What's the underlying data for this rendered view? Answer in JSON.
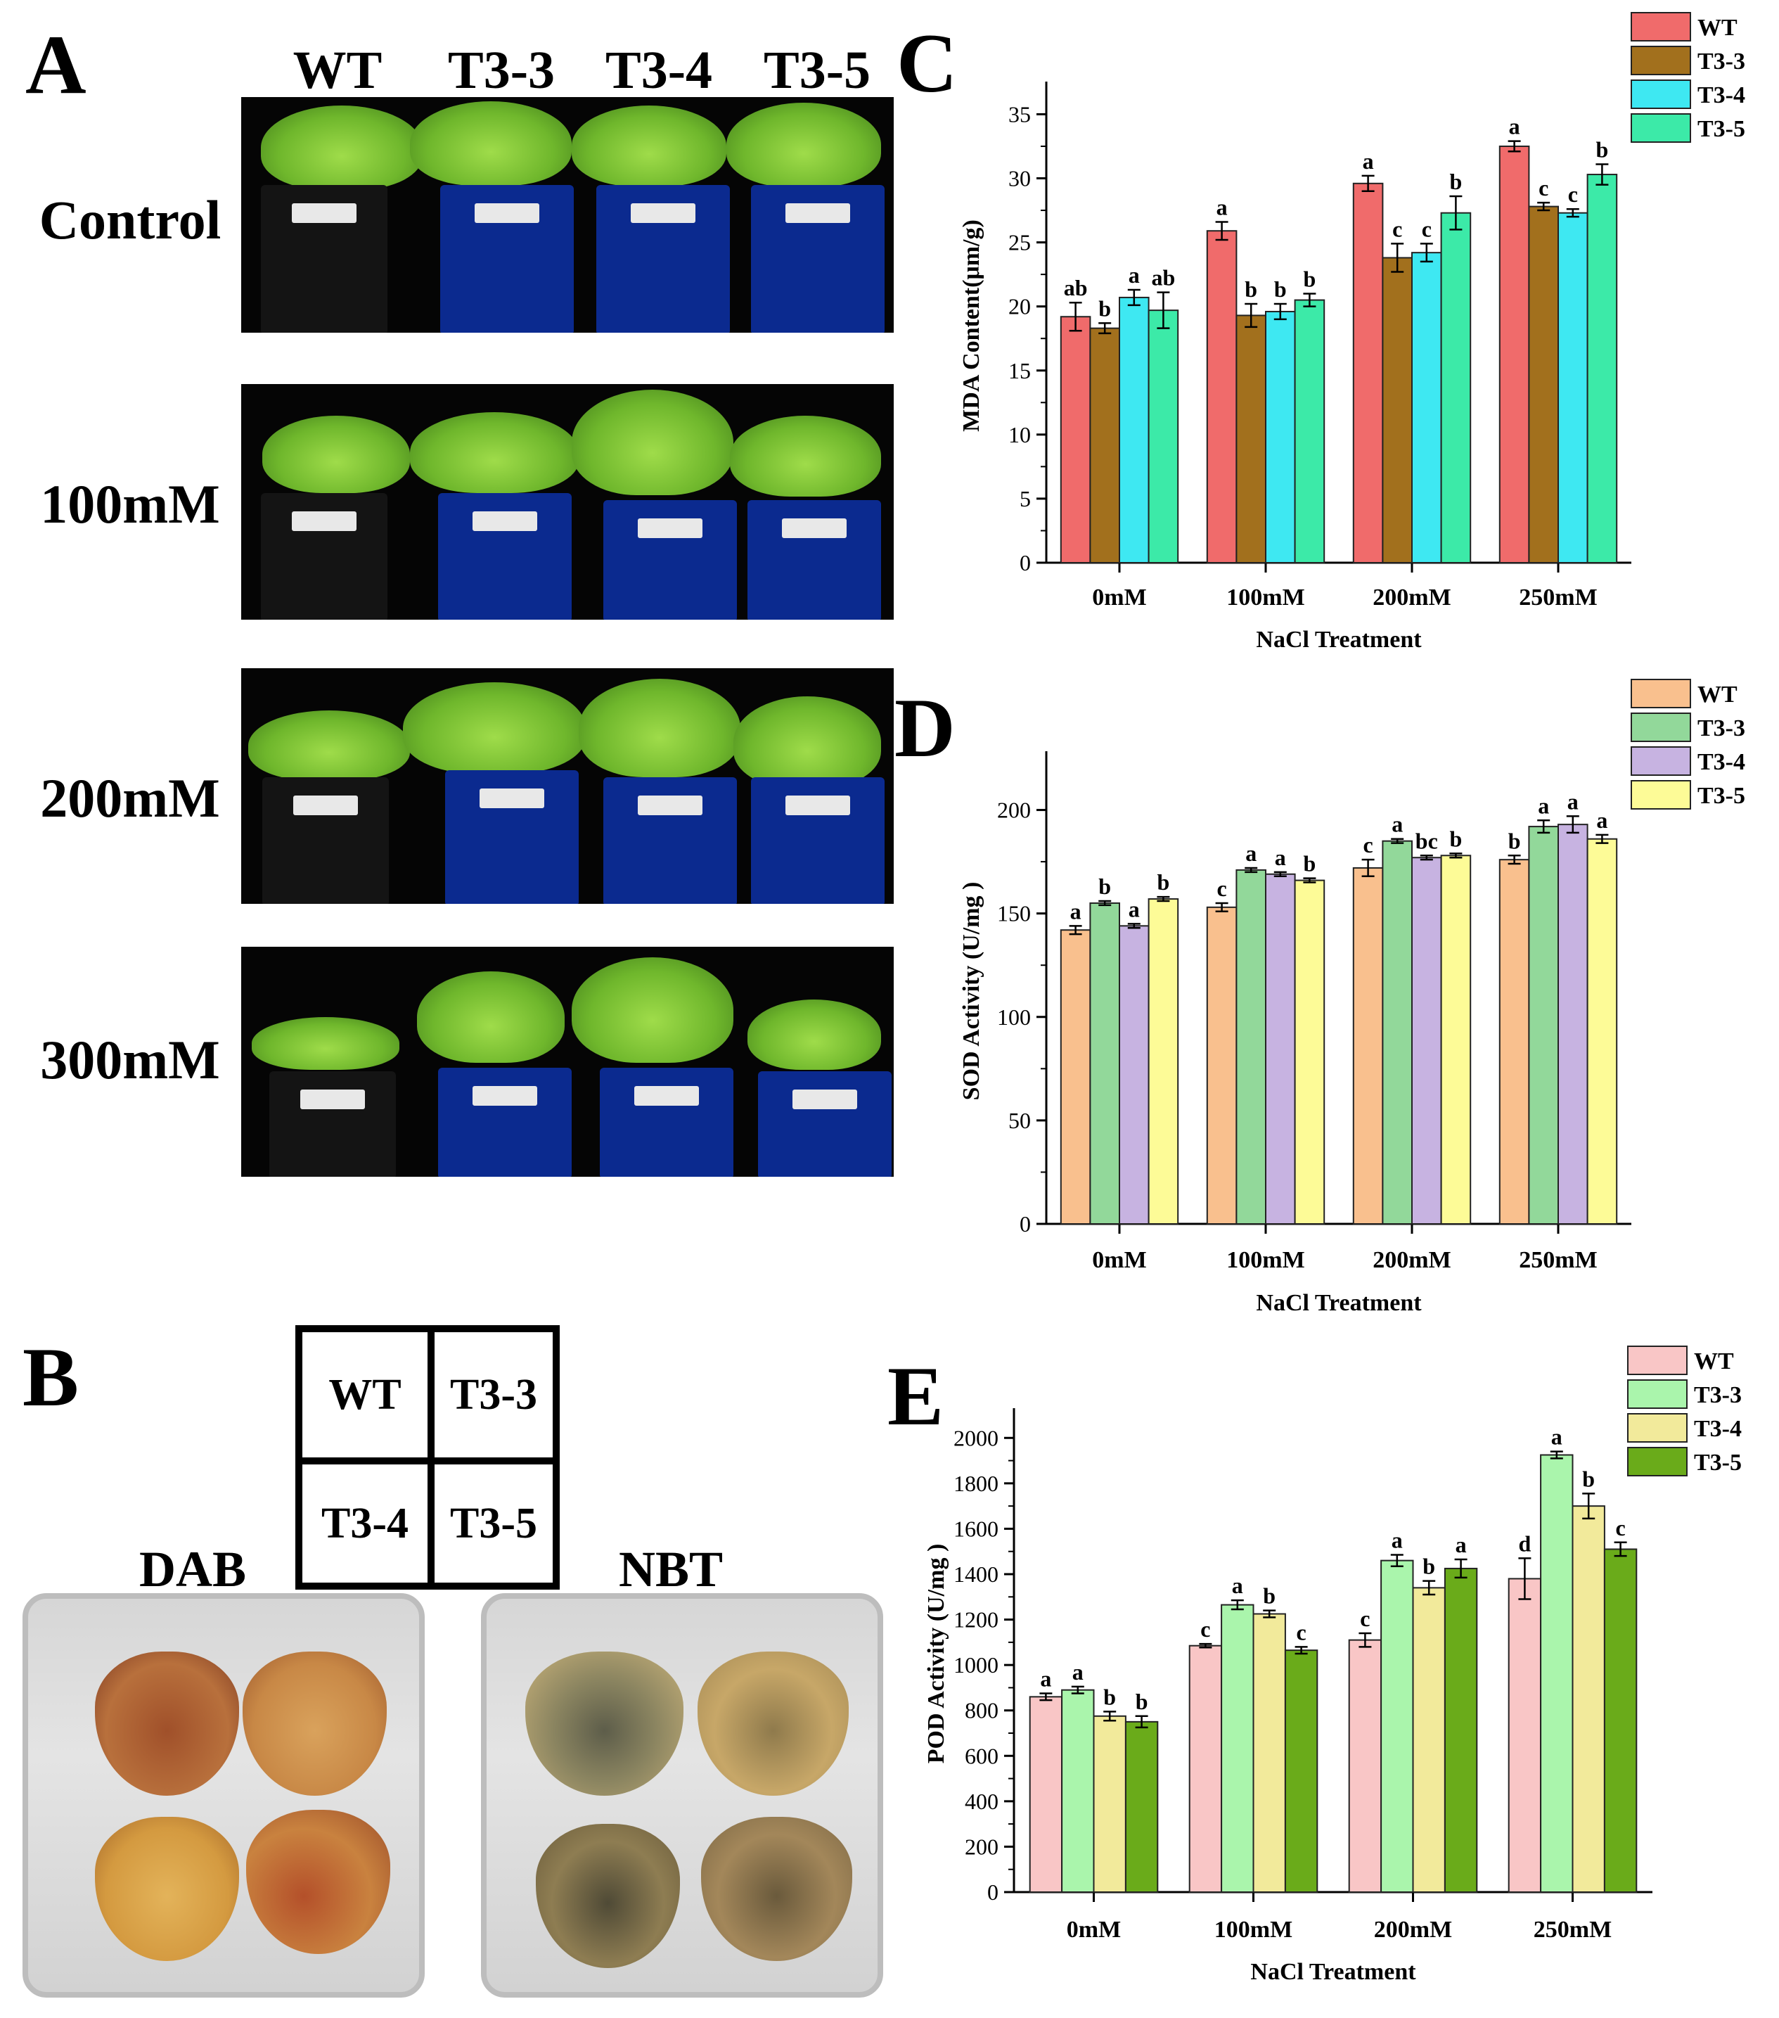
{
  "panel_a": {
    "letter": "A",
    "genotypes": [
      "WT",
      "T3-3",
      "T3-4",
      "T3-5"
    ],
    "rows": [
      "Control",
      "100mM",
      "200mM",
      "300mM"
    ]
  },
  "panel_b": {
    "letter": "B",
    "grid": [
      "WT",
      "T3-3",
      "T3-4",
      "T3-5"
    ],
    "dab_label": "DAB",
    "nbt_label": "NBT"
  },
  "chart_data": [
    {
      "panel": "C",
      "type": "bar",
      "categories": [
        "0mM",
        "100mM",
        "200mM",
        "250mM"
      ],
      "xlabel": "NaCl Treatment",
      "ylabel": "MDA Content(μm/g)",
      "ylim": [
        0,
        37
      ],
      "yticks": [
        0,
        5,
        10,
        15,
        20,
        25,
        30,
        35
      ],
      "legend_position": "top-right",
      "series": [
        {
          "name": "WT",
          "color": "#f06b6b",
          "values": [
            19.2,
            25.9,
            29.6,
            32.5
          ],
          "errors": [
            1.1,
            0.7,
            0.6,
            0.4
          ],
          "letters": [
            "ab",
            "a",
            "a",
            "a"
          ]
        },
        {
          "name": "T3-3",
          "color": "#a2701d",
          "values": [
            18.3,
            19.3,
            23.8,
            27.8
          ],
          "errors": [
            0.4,
            0.9,
            1.1,
            0.3
          ],
          "letters": [
            "b",
            "b",
            "c",
            "c"
          ]
        },
        {
          "name": "T3-4",
          "color": "#3ee8f2",
          "values": [
            20.7,
            19.6,
            24.2,
            27.3
          ],
          "errors": [
            0.6,
            0.6,
            0.7,
            0.3
          ],
          "letters": [
            "a",
            "b",
            "c",
            "c"
          ]
        },
        {
          "name": "T3-5",
          "color": "#3ceaa8",
          "values": [
            19.7,
            20.5,
            27.3,
            30.3
          ],
          "errors": [
            1.4,
            0.5,
            1.3,
            0.8
          ],
          "letters": [
            "ab",
            "b",
            "b",
            "b"
          ]
        }
      ]
    },
    {
      "panel": "D",
      "type": "bar",
      "categories": [
        "0mM",
        "100mM",
        "200mM",
        "250mM"
      ],
      "xlabel": "NaCl Treatment",
      "ylabel": "SOD Activity (U/mg )",
      "ylim": [
        0,
        225
      ],
      "yticks": [
        0,
        50,
        100,
        150,
        200
      ],
      "legend_position": "top-right",
      "series": [
        {
          "name": "WT",
          "color": "#f9c08e",
          "values": [
            142,
            153,
            172,
            176
          ],
          "errors": [
            2,
            2,
            4,
            2
          ],
          "letters": [
            "a",
            "c",
            "c",
            "b"
          ]
        },
        {
          "name": "T3-3",
          "color": "#92d89a",
          "values": [
            155,
            171,
            185,
            192
          ],
          "errors": [
            1,
            1,
            1,
            3
          ],
          "letters": [
            "b",
            "a",
            "a",
            "a"
          ]
        },
        {
          "name": "T3-4",
          "color": "#c7b3e1",
          "values": [
            144,
            169,
            177,
            193
          ],
          "errors": [
            1,
            1,
            1,
            4
          ],
          "letters": [
            "a",
            "a",
            "bc",
            "a"
          ]
        },
        {
          "name": "T3-5",
          "color": "#fdfb97",
          "values": [
            157,
            166,
            178,
            186
          ],
          "errors": [
            1,
            1,
            1,
            2
          ],
          "letters": [
            "b",
            "b",
            "b",
            "a"
          ]
        }
      ]
    },
    {
      "panel": "E",
      "type": "bar",
      "categories": [
        "0mM",
        "100mM",
        "200mM",
        "250mM"
      ],
      "xlabel": "NaCl Treatment",
      "ylabel": "POD Activity (U/mg )",
      "ylim": [
        0,
        2100
      ],
      "yticks": [
        0,
        200,
        400,
        600,
        800,
        1000,
        1200,
        1400,
        1600,
        1800,
        2000
      ],
      "legend_position": "top-right",
      "series": [
        {
          "name": "WT",
          "color": "#f9c6c6",
          "values": [
            860,
            1085,
            1110,
            1380
          ],
          "errors": [
            15,
            8,
            30,
            90
          ],
          "letters": [
            "a",
            "c",
            "c",
            "d"
          ]
        },
        {
          "name": "T3-3",
          "color": "#aaf5ac",
          "values": [
            890,
            1265,
            1460,
            1925
          ],
          "errors": [
            15,
            20,
            25,
            15
          ],
          "letters": [
            "a",
            "a",
            "a",
            "a"
          ]
        },
        {
          "name": "T3-4",
          "color": "#f2ea9b",
          "values": [
            775,
            1225,
            1340,
            1700
          ],
          "errors": [
            20,
            15,
            30,
            55
          ],
          "letters": [
            "b",
            "b",
            "b",
            "b"
          ]
        },
        {
          "name": "T3-5",
          "color": "#6aab1a",
          "values": [
            750,
            1065,
            1425,
            1510
          ],
          "errors": [
            25,
            15,
            40,
            30
          ],
          "letters": [
            "b",
            "c",
            "a",
            "c"
          ]
        }
      ]
    }
  ]
}
